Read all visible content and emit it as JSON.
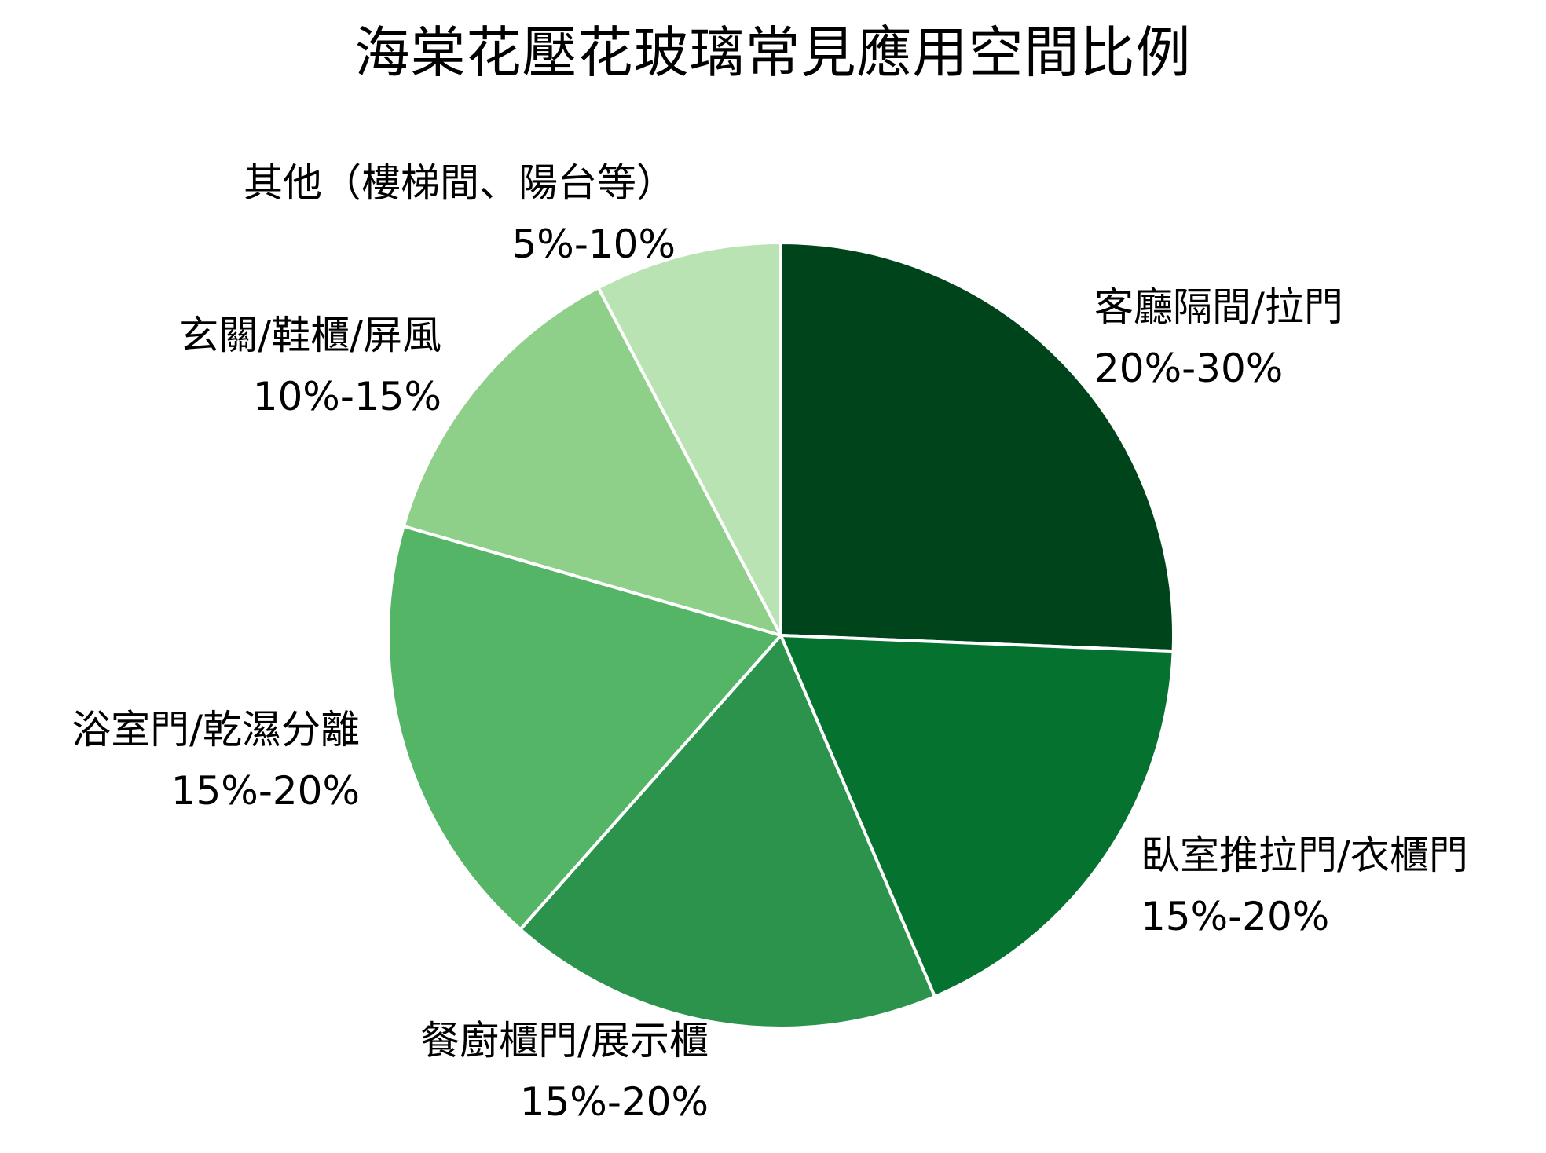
{
  "chart_data": {
    "type": "pie",
    "title": "海棠花壓花玻璃常見應用空間比例",
    "start_angle": "12 o'clock, clockwise",
    "categories": [
      "客廳隔間/拉門",
      "臥室推拉門/衣櫃門",
      "餐廚櫃門/展示櫃",
      "浴室門/乾濕分離",
      "玄關/鞋櫃/屏風",
      "其他（樓梯間、陽台等）"
    ],
    "range_labels": [
      "20%-30%",
      "15%-20%",
      "15%-20%",
      "15%-20%",
      "10%-15%",
      "5%-10%"
    ],
    "values": [
      25,
      17.5,
      17.5,
      17.5,
      12.5,
      7.5
    ],
    "colors": [
      "#00441b",
      "#06722f",
      "#2c934c",
      "#55b567",
      "#8ecf89",
      "#b9e3b2"
    ],
    "legend": "none (labels outside slices)"
  },
  "title": "海棠花壓花玻璃常見應用空間比例",
  "labels": [
    {
      "name": "客廳隔間/拉門",
      "range": "20%-30%"
    },
    {
      "name": "臥室推拉門/衣櫃門",
      "range": "15%-20%"
    },
    {
      "name": "餐廚櫃門/展示櫃",
      "range": "15%-20%"
    },
    {
      "name": "浴室門/乾濕分離",
      "range": "15%-20%"
    },
    {
      "name": "玄關/鞋櫃/屏風",
      "range": "10%-15%"
    },
    {
      "name": "其他（樓梯間、陽台等）",
      "range": "5%-10%"
    }
  ]
}
